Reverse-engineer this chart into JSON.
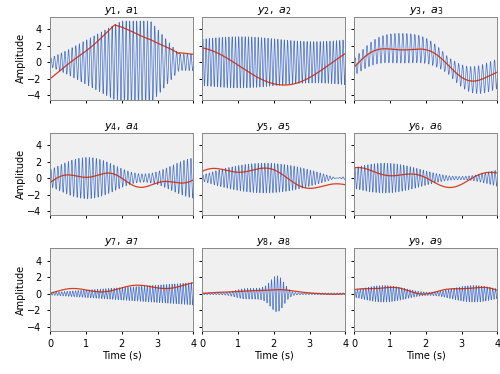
{
  "ylim": [
    -4.5,
    5.5
  ],
  "xlim": [
    0,
    4
  ],
  "xticks": [
    0,
    1,
    2,
    3,
    4
  ],
  "yticks": [
    -4,
    -2,
    0,
    2,
    4
  ],
  "xlabel": "Time (s)",
  "ylabel": "Amplitude",
  "blue_color": "#3060c8",
  "red_color": "#cc2200",
  "blue_alpha": 0.9,
  "red_alpha": 0.85,
  "linewidth_blue": 0.5,
  "linewidth_red": 0.9,
  "bg_color": "#f0f0f0",
  "figwidth": 5.0,
  "figheight": 3.74,
  "dpi": 100
}
